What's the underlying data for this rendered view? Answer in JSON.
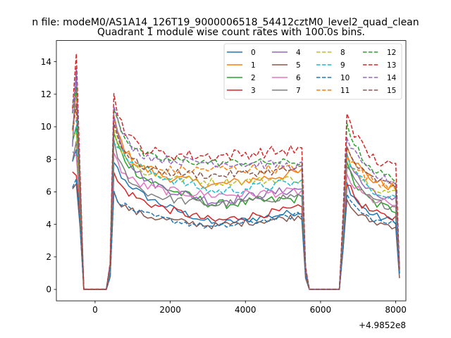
{
  "chart_data": {
    "type": "line",
    "suptitle": "n file: modeM0/AS1A14_126T19_9000006518_54412cztM0_level2_quad_clean",
    "title": "Quadrant 1 module wise count rates with 100.0s bins.",
    "xlabel": "",
    "ylabel": "",
    "x_offset_label": "+4.9852e8",
    "xlim": [
      -1030,
      8270
    ],
    "ylim": [
      -0.7,
      15.3
    ],
    "xticks": [
      0,
      2000,
      4000,
      6000,
      8000
    ],
    "xtick_labels": [
      "0",
      "2000",
      "4000",
      "6000",
      "8000"
    ],
    "yticks": [
      0,
      2,
      4,
      6,
      8,
      10,
      12,
      14
    ],
    "ytick_labels": [
      "0",
      "2",
      "4",
      "6",
      "8",
      "10",
      "12",
      "14"
    ],
    "grid": false,
    "legend": "top-right",
    "legend_columns": 4,
    "x": [
      -600,
      -500,
      -400,
      -300,
      -200,
      -100,
      0,
      100,
      200,
      300,
      400,
      500,
      600,
      700,
      800,
      900,
      1000,
      1100,
      1200,
      1300,
      1400,
      1500,
      1600,
      1700,
      1800,
      1900,
      2000,
      2100,
      2200,
      2300,
      2400,
      2500,
      2600,
      2700,
      2800,
      2900,
      3000,
      3100,
      3200,
      3300,
      3400,
      3500,
      3600,
      3700,
      3800,
      3900,
      4000,
      4100,
      4200,
      4300,
      4400,
      4500,
      4600,
      4700,
      4800,
      4900,
      5000,
      5100,
      5200,
      5300,
      5400,
      5500,
      5600,
      5700,
      5800,
      5900,
      6000,
      6100,
      6200,
      6300,
      6400,
      6500,
      6600,
      6700,
      6800,
      6900,
      7000,
      7100,
      7200,
      7300,
      7400,
      7500,
      7600,
      7700,
      7800,
      7900,
      8000,
      8100
    ],
    "series": [
      {
        "name": "0",
        "color": "#1f77b4",
        "dash": false,
        "peaks": [
          8.6,
          8.2,
          6.5
        ],
        "levels": [
          5.8,
          4.0,
          4.8
        ],
        "noise": 0.22,
        "final": 1.0
      },
      {
        "name": "1",
        "color": "#ff7f0e",
        "dash": false,
        "peaks": [
          12.3,
          11.0,
          9.0
        ],
        "levels": [
          7.2,
          6.4,
          7.2
        ],
        "noise": 0.3,
        "final": 1.2
      },
      {
        "name": "2",
        "color": "#2ca02c",
        "dash": false,
        "peaks": [
          10.0,
          10.0,
          7.6
        ],
        "levels": [
          6.8,
          5.2,
          5.6
        ],
        "noise": 0.3,
        "final": 1.1
      },
      {
        "name": "3",
        "color": "#d62728",
        "dash": false,
        "peaks": [
          7.0,
          7.3,
          6.6
        ],
        "levels": [
          5.4,
          4.2,
          5.0
        ],
        "noise": 0.25,
        "final": 1.0
      },
      {
        "name": "4",
        "color": "#9467bd",
        "dash": false,
        "peaks": [
          13.6,
          11.5,
          8.3
        ],
        "levels": [
          6.6,
          5.4,
          6.2
        ],
        "noise": 0.28,
        "final": 1.2
      },
      {
        "name": "5",
        "color": "#8c564b",
        "dash": false,
        "peaks": [
          6.5,
          6.1,
          5.4
        ],
        "levels": [
          4.5,
          3.9,
          4.5
        ],
        "noise": 0.22,
        "final": 0.7
      },
      {
        "name": "6",
        "color": "#e377c2",
        "dash": false,
        "peaks": [
          8.2,
          8.6,
          7.0
        ],
        "levels": [
          6.2,
          5.8,
          6.0
        ],
        "noise": 0.28,
        "final": 1.1
      },
      {
        "name": "7",
        "color": "#7f7f7f",
        "dash": false,
        "peaks": [
          9.1,
          9.5,
          7.6
        ],
        "levels": [
          5.8,
          5.2,
          5.8
        ],
        "noise": 0.25,
        "final": 1.0
      },
      {
        "name": "8",
        "color": "#bcbd22",
        "dash": true,
        "peaks": [
          9.6,
          10.2,
          8.4
        ],
        "levels": [
          7.0,
          6.6,
          6.8
        ],
        "noise": 0.25,
        "final": 1.1
      },
      {
        "name": "9",
        "color": "#17becf",
        "dash": true,
        "peaks": [
          10.4,
          9.6,
          8.2
        ],
        "levels": [
          7.4,
          6.0,
          6.6
        ],
        "noise": 0.3,
        "final": 1.2
      },
      {
        "name": "10",
        "color": "#1f77b4",
        "dash": true,
        "peaks": [
          6.8,
          6.1,
          5.8
        ],
        "levels": [
          4.6,
          3.8,
          4.6
        ],
        "noise": 0.2,
        "final": 0.9
      },
      {
        "name": "11",
        "color": "#ff7f0e",
        "dash": true,
        "peaks": [
          11.2,
          10.6,
          8.4
        ],
        "levels": [
          7.2,
          7.4,
          7.4
        ],
        "noise": 0.3,
        "final": 1.3
      },
      {
        "name": "12",
        "color": "#2ca02c",
        "dash": true,
        "peaks": [
          12.5,
          11.8,
          10.3
        ],
        "levels": [
          8.0,
          7.8,
          7.8
        ],
        "noise": 0.25,
        "final": 1.3
      },
      {
        "name": "13",
        "color": "#d62728",
        "dash": true,
        "peaks": [
          14.5,
          12.4,
          11.0
        ],
        "levels": [
          8.3,
          8.2,
          8.6
        ],
        "noise": 0.35,
        "final": 1.4
      },
      {
        "name": "14",
        "color": "#9467bd",
        "dash": true,
        "peaks": [
          13.3,
          11.6,
          9.4
        ],
        "levels": [
          8.0,
          7.8,
          7.6
        ],
        "noise": 0.28,
        "final": 1.3
      },
      {
        "name": "15",
        "color": "#8c564b",
        "dash": true,
        "peaks": [
          11.4,
          10.6,
          8.7
        ],
        "levels": [
          7.3,
          7.0,
          7.4
        ],
        "noise": 0.25,
        "final": 1.2
      }
    ]
  }
}
